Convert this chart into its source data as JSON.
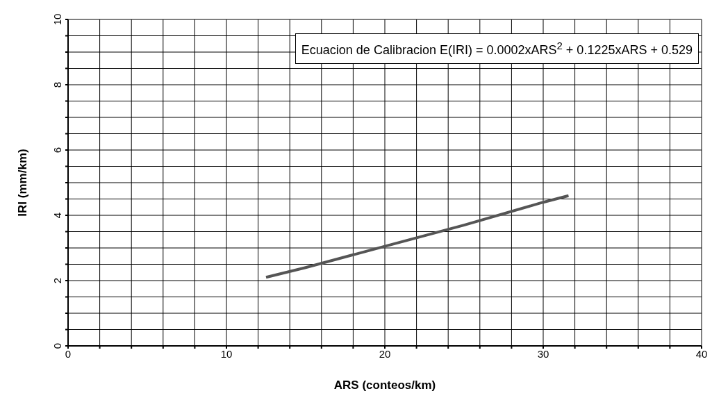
{
  "chart_data": {
    "type": "line",
    "xlabel": "ARS (conteos/km)",
    "ylabel": "IRI (mm/km)",
    "annotations": [
      "Ecuacion de Calibracion E(IRI) = 0.0002xARS$^{2}$ + 0.1225xARS + 0.529"
    ],
    "x": [
      12.5,
      15,
      20,
      25,
      30,
      31.6
    ],
    "series": [
      {
        "color": "#555555",
        "values": [
          2.1,
          2.4,
          3.05,
          3.7,
          4.4,
          4.6
        ]
      }
    ],
    "xlim": [
      0,
      40
    ],
    "xticks": [
      0,
      {
        "value": 2,
        "label": null
      },
      {
        "value": 4,
        "label": null
      },
      {
        "value": 6,
        "label": null
      },
      {
        "value": 8,
        "label": null
      },
      10,
      {
        "value": 12,
        "label": null
      },
      {
        "value": 14,
        "label": null
      },
      {
        "value": 16,
        "label": null
      },
      {
        "value": 18,
        "label": null
      },
      20,
      {
        "value": 22,
        "label": null
      },
      {
        "value": 24,
        "label": null
      },
      {
        "value": 26,
        "label": null
      },
      {
        "value": 28,
        "label": null
      },
      30,
      {
        "value": 32,
        "label": null
      },
      {
        "value": 34,
        "label": null
      },
      {
        "value": 36,
        "label": null
      },
      {
        "value": 38,
        "label": null
      },
      40
    ],
    "ylim": [
      0,
      10
    ],
    "yticks": [
      0,
      {
        "value": 0.5,
        "label": null
      },
      {
        "value": 1,
        "label": null
      },
      {
        "value": 1.5,
        "label": null
      },
      2,
      {
        "value": 2.5,
        "label": null
      },
      {
        "value": 3,
        "label": null
      },
      {
        "value": 3.5,
        "label": null
      },
      4,
      {
        "value": 4.5,
        "label": null
      },
      {
        "value": 5,
        "label": null
      },
      {
        "value": 5.5,
        "label": null
      },
      6,
      {
        "value": 6.5,
        "label": null
      },
      {
        "value": 7,
        "label": null
      },
      {
        "value": 7.5,
        "label": null
      },
      8,
      {
        "value": 8.5,
        "label": null
      },
      {
        "value": 9,
        "label": null
      },
      {
        "value": 9.5,
        "label": null
      },
      10
    ],
    "grid": true,
    "marker": "none",
    "line_style": "solid"
  }
}
